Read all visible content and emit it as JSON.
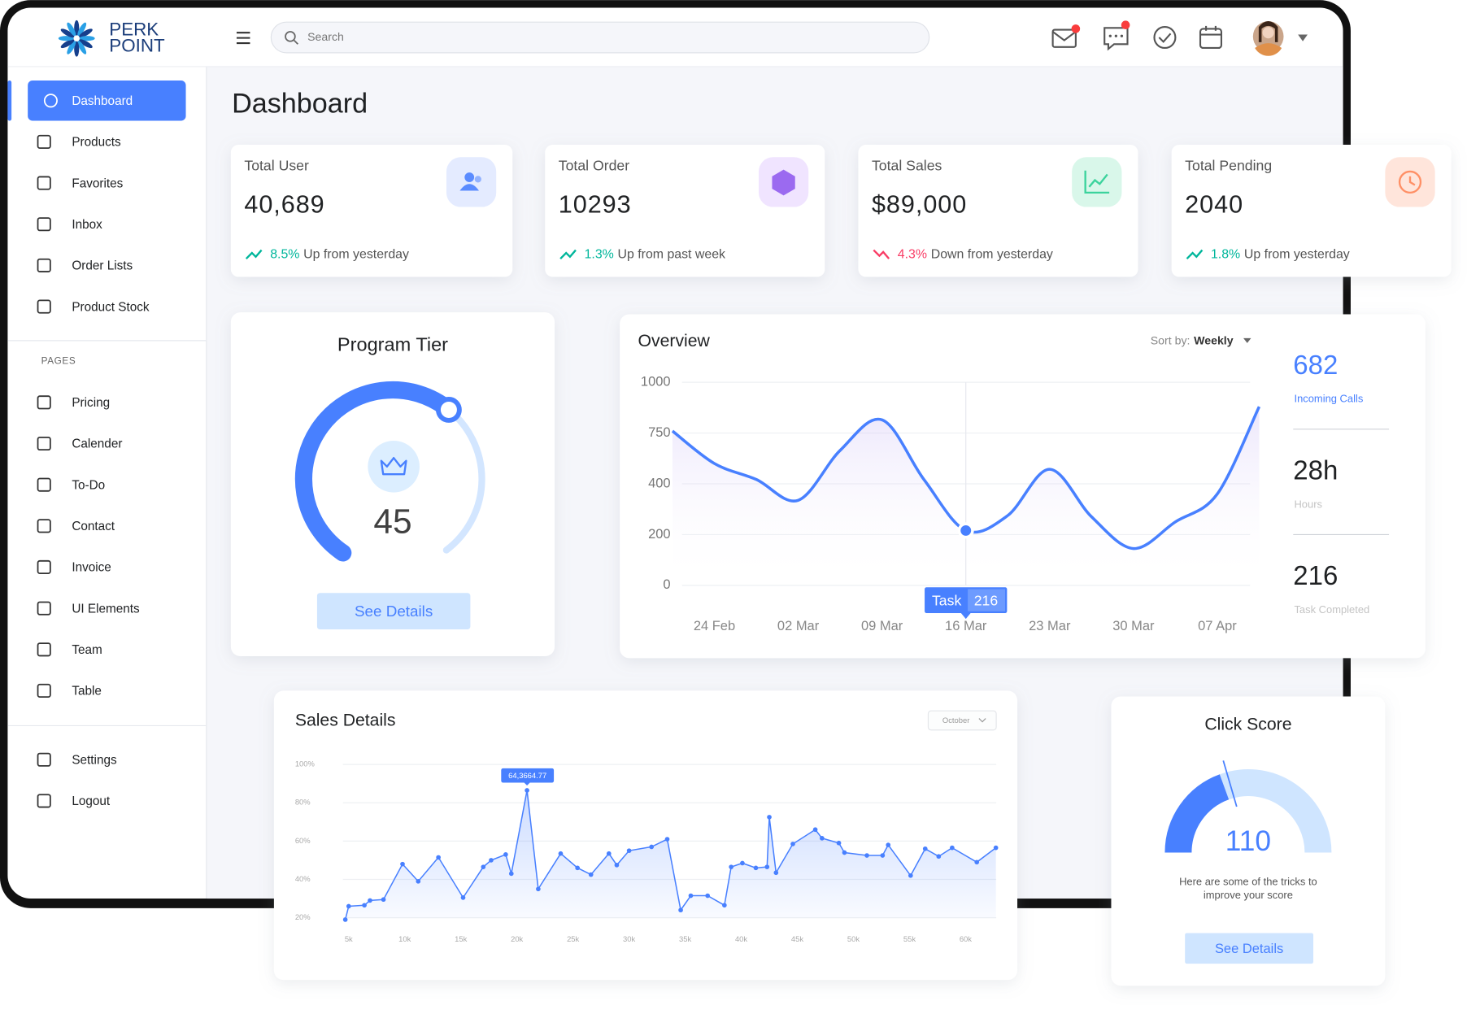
{
  "brand": {
    "line1": "PERK",
    "line2": "POINT"
  },
  "search_placeholder": "Search",
  "nav": {
    "main": [
      "Dashboard",
      "Products",
      "Favorites",
      "Inbox",
      "Order Lists",
      "Product Stock"
    ],
    "section": "PAGES",
    "pages": [
      "Pricing",
      "Calender",
      "To-Do",
      "Contact",
      "Invoice",
      "UI Elements",
      "Team",
      "Table"
    ],
    "bottom": [
      "Settings",
      "Logout"
    ]
  },
  "page_title": "Dashboard",
  "stats": [
    {
      "label": "Total User",
      "value": "40,689",
      "change": "8.5%",
      "note": "Up from yesterday",
      "trend": "up"
    },
    {
      "label": "Total Order",
      "value": 10293,
      "change": "1.3%",
      "note": "Up from past week",
      "trend": "up"
    },
    {
      "label": "Total Sales",
      "value": "$89,000",
      "change": "4.3%",
      "note": "Down from yesterday",
      "trend": "down"
    },
    {
      "label": "Total Pending",
      "value": 2040,
      "change": "1.8%",
      "note": "Up from yesterday",
      "trend": "up"
    }
  ],
  "program_tier": {
    "title": "Program Tier",
    "value": 45,
    "button": "See Details"
  },
  "overview": {
    "title": "Overview",
    "sort_label": "Sort by:",
    "sort_value": "Weekly",
    "categories": [
      null,
      "24 Feb",
      null,
      "02 Mar",
      null,
      "09 Mar",
      null,
      "16 Mar",
      null,
      "23 Mar",
      null,
      "30 Mar",
      null,
      "07 Apr",
      null
    ],
    "values": [
      760,
      540,
      430,
      335,
      630,
      815,
      430,
      216,
      275,
      500,
      270,
      145,
      250,
      360,
      880
    ],
    "color": "#4880ff",
    "ylim": [
      0,
      1000
    ],
    "yticks": [
      1000,
      750,
      400,
      200,
      0
    ],
    "tooltip": {
      "label": "Task",
      "value": 216
    },
    "summary": [
      {
        "value": 682,
        "label": "Incoming Calls"
      },
      {
        "value": "28h",
        "label": "Hours"
      },
      {
        "value": 216,
        "label": "Task Completed"
      }
    ]
  },
  "sales": {
    "title": "Sales Details",
    "filter": "October",
    "color": "#4880ff",
    "x": [
      4700,
      5000,
      6400,
      6900,
      8100,
      9800,
      11200,
      13000,
      15200,
      17000,
      17700,
      19000,
      19500,
      20900,
      21900,
      23900,
      25400,
      26600,
      28200,
      28900,
      30000,
      32000,
      33400,
      34600,
      35500,
      37000,
      38500,
      39100,
      40100,
      41300,
      42300,
      42500,
      43100,
      44600,
      46600,
      47200,
      48700,
      49200,
      51200,
      52600,
      53100,
      55100,
      56400,
      57600,
      58800,
      61000,
      62700
    ],
    "values": [
      19,
      26,
      26.5,
      29,
      29.5,
      48,
      39,
      51.5,
      30.5,
      46.5,
      50,
      53,
      43,
      86.5,
      35,
      53.5,
      46,
      42.5,
      53.5,
      47.5,
      55,
      57,
      61,
      24,
      31.5,
      31.5,
      26.5,
      46.5,
      48.5,
      46,
      46.5,
      72.5,
      43.5,
      58.5,
      66,
      61.5,
      59,
      54,
      52.5,
      52.5,
      58,
      42,
      56,
      52,
      56.5,
      49,
      56.5
    ],
    "xlim": [
      5000,
      60000
    ],
    "xticks": [
      {
        "value": 5000,
        "label": "5k"
      },
      {
        "value": 10000,
        "label": "10k"
      },
      {
        "value": 15000,
        "label": "15k"
      },
      {
        "value": 20000,
        "label": "20k"
      },
      {
        "value": 25000,
        "label": "25k"
      },
      {
        "value": 30000,
        "label": "30k"
      },
      {
        "value": 35000,
        "label": "35k"
      },
      {
        "value": 40000,
        "label": "40k"
      },
      {
        "value": 45000,
        "label": "45k"
      },
      {
        "value": 50000,
        "label": "50k"
      },
      {
        "value": 55000,
        "label": "55k"
      },
      {
        "value": 60000,
        "label": "60k"
      }
    ],
    "ylim": [
      20,
      100
    ],
    "yticks": [
      {
        "value": 20,
        "label": "20%"
      },
      {
        "value": 40,
        "label": "40%"
      },
      {
        "value": 60,
        "label": "60%"
      },
      {
        "value": 80,
        "label": "80%"
      },
      {
        "value": 100,
        "label": "100%"
      }
    ],
    "tooltip": "64,3664.77"
  },
  "click_score": {
    "title": "Click Score",
    "value": 110,
    "text_lines": [
      "Here are some of the tricks to",
      "improve your score"
    ],
    "button": "See Details"
  }
}
